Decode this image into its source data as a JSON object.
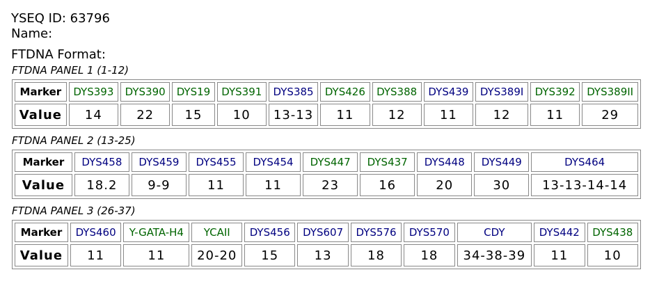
{
  "header": {
    "id_line": "YSEQ ID: 63796",
    "name": "Name:",
    "format": "FTDNA Format:"
  },
  "panels": [
    {
      "title": "FTDNA PANEL 1 (1-12)",
      "marker_label": "Marker",
      "value_label": "Value",
      "markers": [
        {
          "name": "DYS393",
          "value": "14",
          "color": "#006400"
        },
        {
          "name": "DYS390",
          "value": "22",
          "color": "#006400"
        },
        {
          "name": "DYS19",
          "value": "15",
          "color": "#006400"
        },
        {
          "name": "DYS391",
          "value": "10",
          "color": "#006400"
        },
        {
          "name": "DYS385",
          "value": "13-13",
          "color": "#000080"
        },
        {
          "name": "DYS426",
          "value": "11",
          "color": "#006400"
        },
        {
          "name": "DYS388",
          "value": "12",
          "color": "#006400"
        },
        {
          "name": "DYS439",
          "value": "11",
          "color": "#000080"
        },
        {
          "name": "DYS389I",
          "value": "12",
          "color": "#000080"
        },
        {
          "name": "DYS392",
          "value": "11",
          "color": "#006400"
        },
        {
          "name": "DYS389II",
          "value": "29",
          "color": "#006400"
        }
      ]
    },
    {
      "title": "FTDNA PANEL 2 (13-25)",
      "marker_label": "Marker",
      "value_label": "Value",
      "markers": [
        {
          "name": "DYS458",
          "value": "18.2",
          "color": "#000080"
        },
        {
          "name": "DYS459",
          "value": "9-9",
          "color": "#000080"
        },
        {
          "name": "DYS455",
          "value": "11",
          "color": "#000080"
        },
        {
          "name": "DYS454",
          "value": "11",
          "color": "#000080"
        },
        {
          "name": "DYS447",
          "value": "23",
          "color": "#006400"
        },
        {
          "name": "DYS437",
          "value": "16",
          "color": "#006400"
        },
        {
          "name": "DYS448",
          "value": "20",
          "color": "#000080"
        },
        {
          "name": "DYS449",
          "value": "30",
          "color": "#000080"
        },
        {
          "name": "DYS464",
          "value": "13-13-14-14",
          "color": "#000080"
        }
      ]
    },
    {
      "title": "FTDNA PANEL 3 (26-37)",
      "marker_label": "Marker",
      "value_label": "Value",
      "markers": [
        {
          "name": "DYS460",
          "value": "11",
          "color": "#000080"
        },
        {
          "name": "Y-GATA-H4",
          "value": "11",
          "color": "#006400"
        },
        {
          "name": "YCAII",
          "value": "20-20",
          "color": "#006400"
        },
        {
          "name": "DYS456",
          "value": "15",
          "color": "#000080"
        },
        {
          "name": "DYS607",
          "value": "13",
          "color": "#000080"
        },
        {
          "name": "DYS576",
          "value": "18",
          "color": "#000080"
        },
        {
          "name": "DYS570",
          "value": "18",
          "color": "#000080"
        },
        {
          "name": "CDY",
          "value": "34-38-39",
          "color": "#000080"
        },
        {
          "name": "DYS442",
          "value": "11",
          "color": "#000080"
        },
        {
          "name": "DYS438",
          "value": "10",
          "color": "#006400"
        }
      ]
    }
  ]
}
